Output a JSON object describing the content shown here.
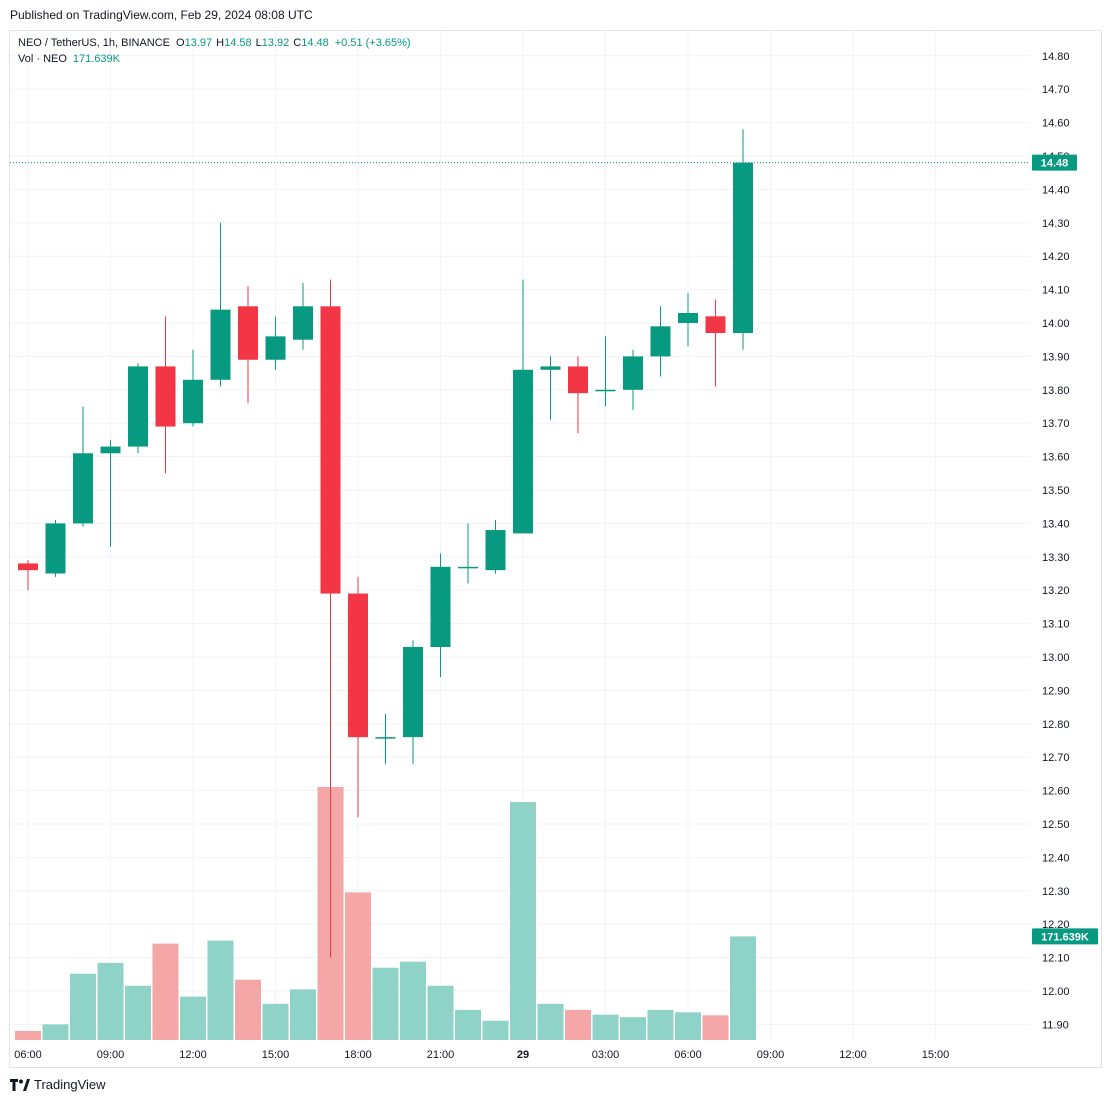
{
  "published": "Published on TradingView.com, Feb 29, 2024 08:08 UTC",
  "legend": {
    "symbol": "NEO / TetherUS, 1h, BINANCE",
    "o_label": "O",
    "o_value": "13.97",
    "h_label": "H",
    "h_value": "14.58",
    "l_label": "L",
    "l_value": "13.92",
    "c_label": "C",
    "c_value": "14.48",
    "change": "+0.51 (+3.65%)",
    "vol_label": "Vol · NEO",
    "vol_value": "171.639K"
  },
  "footer": {
    "brand": "TradingView",
    "logo_icon": "tradingview-logo-icon"
  },
  "colors": {
    "up": "#089981",
    "down": "#f23645",
    "vol_up": "#8fd3c8",
    "vol_down": "#f5a6a6",
    "grid": "#f0f3fa",
    "text": "#131722"
  },
  "chart_data": {
    "type": "candlestick",
    "price_axis": {
      "ticks": [
        "14.80",
        "14.70",
        "14.60",
        "14.50",
        "14.40",
        "14.30",
        "14.20",
        "14.10",
        "14.00",
        "13.90",
        "13.80",
        "13.70",
        "13.60",
        "13.50",
        "13.40",
        "13.30",
        "13.20",
        "13.10",
        "13.00",
        "12.90",
        "12.80",
        "12.70",
        "12.60",
        "12.50",
        "12.40",
        "12.30",
        "12.20",
        "12.10",
        "12.00",
        "11.90"
      ],
      "range": [
        11.85,
        14.85
      ]
    },
    "time_axis": {
      "ticks": [
        {
          "label": "06:00",
          "index": 0,
          "bold": false
        },
        {
          "label": "09:00",
          "index": 3,
          "bold": false
        },
        {
          "label": "12:00",
          "index": 6,
          "bold": false
        },
        {
          "label": "15:00",
          "index": 9,
          "bold": false
        },
        {
          "label": "18:00",
          "index": 12,
          "bold": false
        },
        {
          "label": "21:00",
          "index": 15,
          "bold": false
        },
        {
          "label": "29",
          "index": 18,
          "bold": true
        },
        {
          "label": "03:00",
          "index": 21,
          "bold": false
        },
        {
          "label": "06:00",
          "index": 24,
          "bold": false
        },
        {
          "label": "09:00",
          "index": 27,
          "bold": false
        },
        {
          "label": "12:00",
          "index": 30,
          "bold": false
        },
        {
          "label": "15:00",
          "index": 33,
          "bold": false
        }
      ]
    },
    "last_price": {
      "value": 14.48,
      "label": "14.48"
    },
    "last_volume": {
      "label": "171.639K"
    },
    "volume_max": 420,
    "candles": [
      {
        "o": 13.28,
        "h": 13.29,
        "l": 13.2,
        "c": 13.26,
        "v": 15
      },
      {
        "o": 13.25,
        "h": 13.41,
        "l": 13.24,
        "c": 13.4,
        "v": 26
      },
      {
        "o": 13.4,
        "h": 13.75,
        "l": 13.39,
        "c": 13.61,
        "v": 110
      },
      {
        "o": 13.61,
        "h": 13.65,
        "l": 13.33,
        "c": 13.63,
        "v": 128
      },
      {
        "o": 13.63,
        "h": 13.88,
        "l": 13.61,
        "c": 13.87,
        "v": 90
      },
      {
        "o": 13.87,
        "h": 14.02,
        "l": 13.55,
        "c": 13.69,
        "v": 160
      },
      {
        "o": 13.7,
        "h": 13.92,
        "l": 13.69,
        "c": 13.83,
        "v": 72
      },
      {
        "o": 13.83,
        "h": 14.3,
        "l": 13.81,
        "c": 14.04,
        "v": 165
      },
      {
        "o": 14.05,
        "h": 14.11,
        "l": 13.76,
        "c": 13.89,
        "v": 100
      },
      {
        "o": 13.89,
        "h": 14.02,
        "l": 13.86,
        "c": 13.96,
        "v": 60
      },
      {
        "o": 13.95,
        "h": 14.12,
        "l": 13.92,
        "c": 14.05,
        "v": 84
      },
      {
        "o": 14.05,
        "h": 14.13,
        "l": 12.1,
        "c": 13.19,
        "v": 420
      },
      {
        "o": 13.19,
        "h": 13.24,
        "l": 12.52,
        "c": 12.76,
        "v": 245
      },
      {
        "o": 12.76,
        "h": 12.83,
        "l": 12.68,
        "c": 12.76,
        "v": 120
      },
      {
        "o": 12.76,
        "h": 13.05,
        "l": 12.68,
        "c": 13.03,
        "v": 130
      },
      {
        "o": 13.03,
        "h": 13.31,
        "l": 12.94,
        "c": 13.27,
        "v": 90
      },
      {
        "o": 13.27,
        "h": 13.4,
        "l": 13.22,
        "c": 13.27,
        "v": 50
      },
      {
        "o": 13.26,
        "h": 13.41,
        "l": 13.25,
        "c": 13.38,
        "v": 32
      },
      {
        "o": 13.37,
        "h": 14.13,
        "l": 13.37,
        "c": 13.86,
        "v": 395
      },
      {
        "o": 13.86,
        "h": 13.9,
        "l": 13.71,
        "c": 13.87,
        "v": 60
      },
      {
        "o": 13.87,
        "h": 13.9,
        "l": 13.67,
        "c": 13.79,
        "v": 50
      },
      {
        "o": 13.8,
        "h": 13.96,
        "l": 13.75,
        "c": 13.8,
        "v": 42
      },
      {
        "o": 13.8,
        "h": 13.92,
        "l": 13.74,
        "c": 13.9,
        "v": 38
      },
      {
        "o": 13.9,
        "h": 14.05,
        "l": 13.84,
        "c": 13.99,
        "v": 50
      },
      {
        "o": 14.0,
        "h": 14.09,
        "l": 13.93,
        "c": 14.03,
        "v": 46
      },
      {
        "o": 14.02,
        "h": 14.07,
        "l": 13.81,
        "c": 13.97,
        "v": 41
      },
      {
        "o": 13.97,
        "h": 14.58,
        "l": 13.92,
        "c": 14.48,
        "v": 172
      }
    ]
  }
}
